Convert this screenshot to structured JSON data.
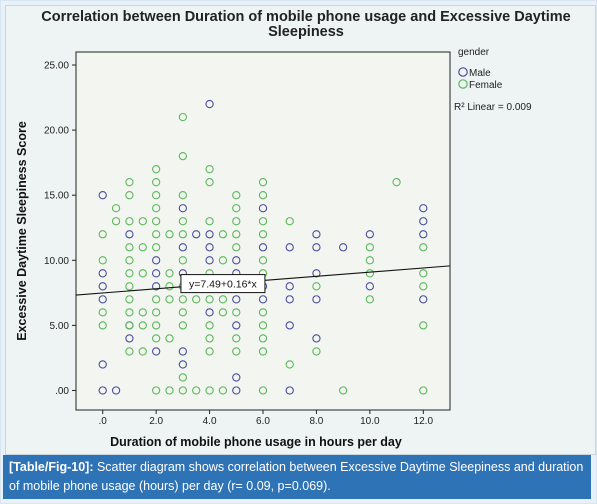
{
  "caption": {
    "label": "[Table/Fig-10]:",
    "text": " Scatter diagram shows correlation between Excessive Daytime Sleepiness and duration of mobile phone usage (hours) per day (r= 0.09, p=0.069)."
  },
  "chart_data": {
    "type": "scatter",
    "title_lines": [
      "Correlation between Duration of mobile phone usage and Excessive Daytime",
      "Sleepiness"
    ],
    "xlabel": "Duration of mobile phone usage in hours per day",
    "ylabel": "Excessive Daytime Sleepiness Score",
    "xlim": [
      -1,
      13
    ],
    "ylim": [
      -1.5,
      26
    ],
    "x_ticks": [
      0,
      2,
      4,
      6,
      8,
      10,
      12
    ],
    "x_tick_labels": [
      ".0",
      "2.0",
      "4.0",
      "6.0",
      "8.0",
      "10.0",
      "12.0"
    ],
    "y_ticks": [
      0,
      5,
      10,
      15,
      20,
      25
    ],
    "y_tick_labels": [
      ".00",
      "5.00",
      "10.00",
      "15.00",
      "20.00",
      "25.00"
    ],
    "grid": false,
    "legend": {
      "title": "gender",
      "position": "top-right",
      "entries": [
        {
          "label": "Male",
          "color": "#4b4f9e"
        },
        {
          "label": "Female",
          "color": "#5cb85c"
        }
      ]
    },
    "r2_label": "R² Linear = 0.009",
    "fit_line": {
      "intercept": 7.49,
      "slope": 0.16,
      "label": "y=7.49+0.16*x",
      "label_x": 4.5
    },
    "series": [
      {
        "name": "Male",
        "color": "#4b4f9e",
        "points": [
          [
            0,
            15
          ],
          [
            0,
            9
          ],
          [
            0,
            8
          ],
          [
            0,
            7
          ],
          [
            0,
            2
          ],
          [
            0,
            0
          ],
          [
            0.5,
            0
          ],
          [
            1,
            12
          ],
          [
            1,
            5
          ],
          [
            1,
            4
          ],
          [
            2,
            10
          ],
          [
            2,
            9
          ],
          [
            2,
            8
          ],
          [
            2,
            3
          ],
          [
            3,
            14
          ],
          [
            3,
            11
          ],
          [
            3,
            9
          ],
          [
            3,
            3
          ],
          [
            3,
            2
          ],
          [
            3.5,
            12
          ],
          [
            4,
            22
          ],
          [
            4,
            12
          ],
          [
            4,
            11
          ],
          [
            4,
            10
          ],
          [
            4,
            6
          ],
          [
            5,
            10
          ],
          [
            5,
            9
          ],
          [
            5,
            7
          ],
          [
            5,
            5
          ],
          [
            5,
            1
          ],
          [
            5,
            0
          ],
          [
            6,
            14
          ],
          [
            6,
            11
          ],
          [
            6,
            8
          ],
          [
            6,
            7
          ],
          [
            7,
            11
          ],
          [
            7,
            8
          ],
          [
            7,
            7
          ],
          [
            7,
            5
          ],
          [
            7,
            0
          ],
          [
            8,
            12
          ],
          [
            8,
            11
          ],
          [
            8,
            9
          ],
          [
            8,
            7
          ],
          [
            8,
            4
          ],
          [
            9,
            11
          ],
          [
            10,
            12
          ],
          [
            10,
            8
          ],
          [
            12,
            14
          ],
          [
            12,
            13
          ],
          [
            12,
            12
          ],
          [
            12,
            7
          ]
        ]
      },
      {
        "name": "Female",
        "color": "#5cb85c",
        "points": [
          [
            0,
            12
          ],
          [
            0,
            10
          ],
          [
            0,
            6
          ],
          [
            0,
            5
          ],
          [
            0.5,
            13
          ],
          [
            0.5,
            14
          ],
          [
            1,
            16
          ],
          [
            1,
            15
          ],
          [
            1,
            13
          ],
          [
            1,
            11
          ],
          [
            1,
            10
          ],
          [
            1,
            9
          ],
          [
            1,
            8
          ],
          [
            1,
            7
          ],
          [
            1,
            6
          ],
          [
            1,
            5
          ],
          [
            1,
            3
          ],
          [
            1.5,
            13
          ],
          [
            1.5,
            11
          ],
          [
            1.5,
            9
          ],
          [
            1.5,
            6
          ],
          [
            1.5,
            5
          ],
          [
            1.5,
            3
          ],
          [
            2,
            17
          ],
          [
            2,
            16
          ],
          [
            2,
            15
          ],
          [
            2,
            14
          ],
          [
            2,
            13
          ],
          [
            2,
            12
          ],
          [
            2,
            11
          ],
          [
            2,
            7
          ],
          [
            2,
            6
          ],
          [
            2,
            5
          ],
          [
            2,
            4
          ],
          [
            2,
            0
          ],
          [
            2.5,
            12
          ],
          [
            2.5,
            9
          ],
          [
            2.5,
            8
          ],
          [
            2.5,
            7
          ],
          [
            2.5,
            4
          ],
          [
            2.5,
            0
          ],
          [
            3,
            21
          ],
          [
            3,
            18
          ],
          [
            3,
            15
          ],
          [
            3,
            13
          ],
          [
            3,
            12
          ],
          [
            3,
            10
          ],
          [
            3,
            8
          ],
          [
            3,
            7
          ],
          [
            3,
            6
          ],
          [
            3,
            5
          ],
          [
            3,
            1
          ],
          [
            3,
            0
          ],
          [
            3.5,
            7
          ],
          [
            3.5,
            0
          ],
          [
            4,
            17
          ],
          [
            4,
            16
          ],
          [
            4,
            13
          ],
          [
            4,
            9
          ],
          [
            4,
            8
          ],
          [
            4,
            7
          ],
          [
            4,
            5
          ],
          [
            4,
            4
          ],
          [
            4,
            3
          ],
          [
            4,
            0
          ],
          [
            4.5,
            12
          ],
          [
            4.5,
            10
          ],
          [
            4.5,
            7
          ],
          [
            4.5,
            6
          ],
          [
            4.5,
            0
          ],
          [
            5,
            15
          ],
          [
            5,
            14
          ],
          [
            5,
            13
          ],
          [
            5,
            12
          ],
          [
            5,
            11
          ],
          [
            5,
            8
          ],
          [
            5,
            6
          ],
          [
            5,
            4
          ],
          [
            5,
            3
          ],
          [
            6,
            16
          ],
          [
            6,
            15
          ],
          [
            6,
            13
          ],
          [
            6,
            12
          ],
          [
            6,
            10
          ],
          [
            6,
            9
          ],
          [
            6,
            6
          ],
          [
            6,
            5
          ],
          [
            6,
            4
          ],
          [
            6,
            3
          ],
          [
            6,
            0
          ],
          [
            7,
            13
          ],
          [
            7,
            2
          ],
          [
            8,
            8
          ],
          [
            8,
            3
          ],
          [
            9,
            0
          ],
          [
            10,
            11
          ],
          [
            10,
            10
          ],
          [
            10,
            9
          ],
          [
            10,
            7
          ],
          [
            11,
            16
          ],
          [
            12,
            11
          ],
          [
            12,
            9
          ],
          [
            12,
            8
          ],
          [
            12,
            5
          ],
          [
            12,
            0
          ]
        ]
      }
    ]
  }
}
